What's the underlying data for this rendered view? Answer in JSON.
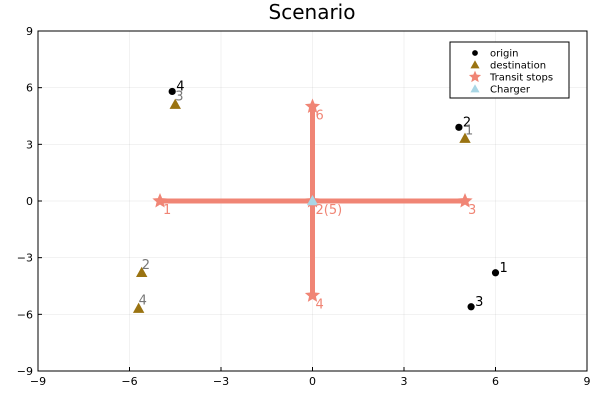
{
  "chart_data": {
    "type": "scatter",
    "title": "Scenario",
    "xlabel": "",
    "ylabel": "",
    "xlim": [
      -9,
      9
    ],
    "ylim": [
      -9,
      9
    ],
    "xticks": [
      -9,
      -6,
      -3,
      0,
      3,
      6,
      9
    ],
    "yticks": [
      -9,
      -6,
      -3,
      0,
      3,
      6,
      9
    ],
    "grid": true,
    "legend_position": "top-right",
    "transit_lines": [
      {
        "from": [
          -5,
          0
        ],
        "to": [
          5,
          0
        ]
      },
      {
        "from": [
          0,
          -5
        ],
        "to": [
          0,
          5
        ]
      }
    ],
    "series": [
      {
        "name": "origin",
        "marker": "circle",
        "color": "#000000",
        "label_color": "#000000",
        "points": [
          {
            "x": 6.0,
            "y": -3.8,
            "label": "1"
          },
          {
            "x": 4.8,
            "y": 3.9,
            "label": "2"
          },
          {
            "x": 5.2,
            "y": -5.6,
            "label": "3"
          },
          {
            "x": -4.6,
            "y": 5.8,
            "label": "4"
          }
        ]
      },
      {
        "name": "destination",
        "marker": "triangle",
        "color": "#9a7311",
        "label_color": "#777777",
        "points": [
          {
            "x": 5.0,
            "y": 3.3,
            "label": "1"
          },
          {
            "x": -5.6,
            "y": -3.8,
            "label": "2"
          },
          {
            "x": -4.5,
            "y": 5.1,
            "label": "3"
          },
          {
            "x": -5.7,
            "y": -5.7,
            "label": "4"
          }
        ]
      },
      {
        "name": "Transit stops",
        "marker": "star",
        "color": "#f08575",
        "label_color": "#f08575",
        "points": [
          {
            "x": -5,
            "y": 0,
            "label": "1"
          },
          {
            "x": 0,
            "y": 0,
            "label": "2(5)"
          },
          {
            "x": 5,
            "y": 0,
            "label": "3"
          },
          {
            "x": 0,
            "y": -5,
            "label": "4"
          },
          {
            "x": 0,
            "y": 5,
            "label": "6"
          }
        ]
      },
      {
        "name": "Charger",
        "marker": "triangle",
        "color": "#a9d6e5",
        "label_color": "#a9d6e5",
        "points": [
          {
            "x": 0,
            "y": 0,
            "label": ""
          }
        ]
      }
    ]
  }
}
